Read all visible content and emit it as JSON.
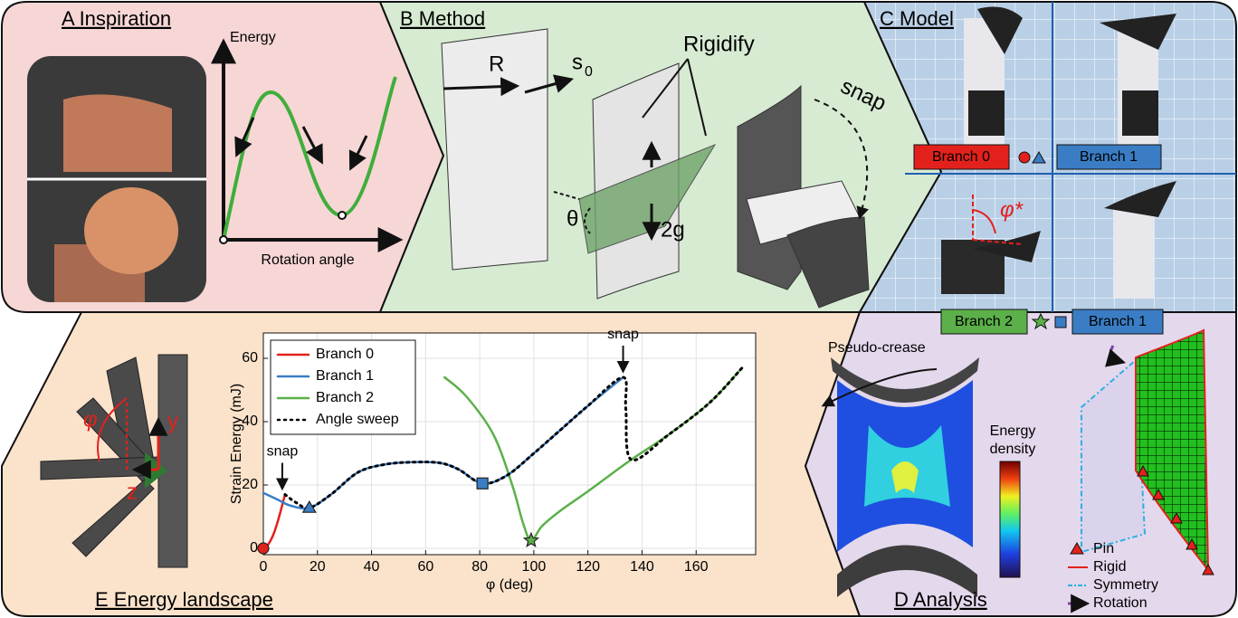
{
  "panels": {
    "A": {
      "title": "A Inspiration",
      "y_axis": "Energy",
      "x_axis": "Rotation angle"
    },
    "B": {
      "title": "B Method",
      "R": "R",
      "s": "s",
      "s_sub": "0",
      "rigidify": "Rigidify",
      "theta": "θ",
      "gap": "2g",
      "snap": "snap"
    },
    "C": {
      "title": "C Model",
      "phi_star": "φ*",
      "labels": [
        "Branch 0",
        "Branch 1",
        "Branch 2",
        "Branch 1"
      ]
    },
    "D": {
      "title": "D Analysis",
      "crease": "Pseudo-crease",
      "colorbar": [
        "Energy",
        "density"
      ],
      "legend": [
        "Pin",
        "Rigid",
        "Symmetry",
        "Rotation"
      ]
    },
    "E": {
      "title": "E Energy landscape",
      "phi": "φ",
      "y": "y",
      "z": "z"
    }
  },
  "chart_data": {
    "type": "line",
    "x_label": "φ (deg)",
    "y_label": "Strain Energy (mJ)",
    "xlim": [
      0,
      182
    ],
    "ylim": [
      -2,
      68
    ],
    "xticks": [
      0,
      20,
      40,
      60,
      80,
      100,
      120,
      140,
      160
    ],
    "yticks": [
      0,
      20,
      40,
      60
    ],
    "grid": true,
    "legend": "upper left",
    "annotations": [
      "snap",
      "snap"
    ],
    "series": [
      {
        "name": "Branch 0",
        "color": "#e3211c",
        "x": [
          0,
          2,
          4,
          6,
          8
        ],
        "values": [
          0,
          1.5,
          5,
          10.5,
          17
        ]
      },
      {
        "name": "Branch 1",
        "color": "#3a7dc4",
        "x": [
          0,
          5,
          10,
          17,
          25,
          35,
          45,
          55,
          65,
          72,
          81,
          90,
          100,
          110,
          120,
          133
        ],
        "values": [
          17.5,
          15.5,
          13.5,
          12.8,
          17,
          24,
          26.5,
          27.2,
          27,
          25,
          20.5,
          23,
          30,
          37.5,
          45,
          54
        ]
      },
      {
        "name": "Branch 2",
        "color": "#5bb04a",
        "x": [
          67,
          75,
          85,
          92,
          96,
          99,
          103,
          110,
          120,
          136,
          150,
          165,
          177
        ],
        "values": [
          54,
          48,
          36,
          20,
          8,
          2.5,
          7,
          12,
          18,
          28,
          36,
          46,
          57
        ]
      },
      {
        "name": "Angle sweep",
        "color": "#000000",
        "dash": "dotted",
        "x": [
          8,
          12,
          17,
          25,
          35,
          45,
          55,
          65,
          72,
          81,
          90,
          100,
          110,
          120,
          133,
          134,
          136,
          150,
          165,
          177
        ],
        "values": [
          17,
          14.5,
          12.8,
          17,
          24,
          26.5,
          27.2,
          27,
          25,
          20.5,
          23,
          30,
          37.5,
          45,
          54,
          44,
          28,
          36,
          46,
          57
        ]
      }
    ],
    "points": [
      {
        "x": 0,
        "y": 0,
        "marker": "circle",
        "color": "#e3211c"
      },
      {
        "x": 17,
        "y": 12.8,
        "marker": "triangle",
        "color": "#3a7dc4"
      },
      {
        "x": 81,
        "y": 20.5,
        "marker": "square",
        "color": "#3a7dc4"
      },
      {
        "x": 99,
        "y": 2.5,
        "marker": "star",
        "color": "#5bb04a"
      }
    ]
  }
}
